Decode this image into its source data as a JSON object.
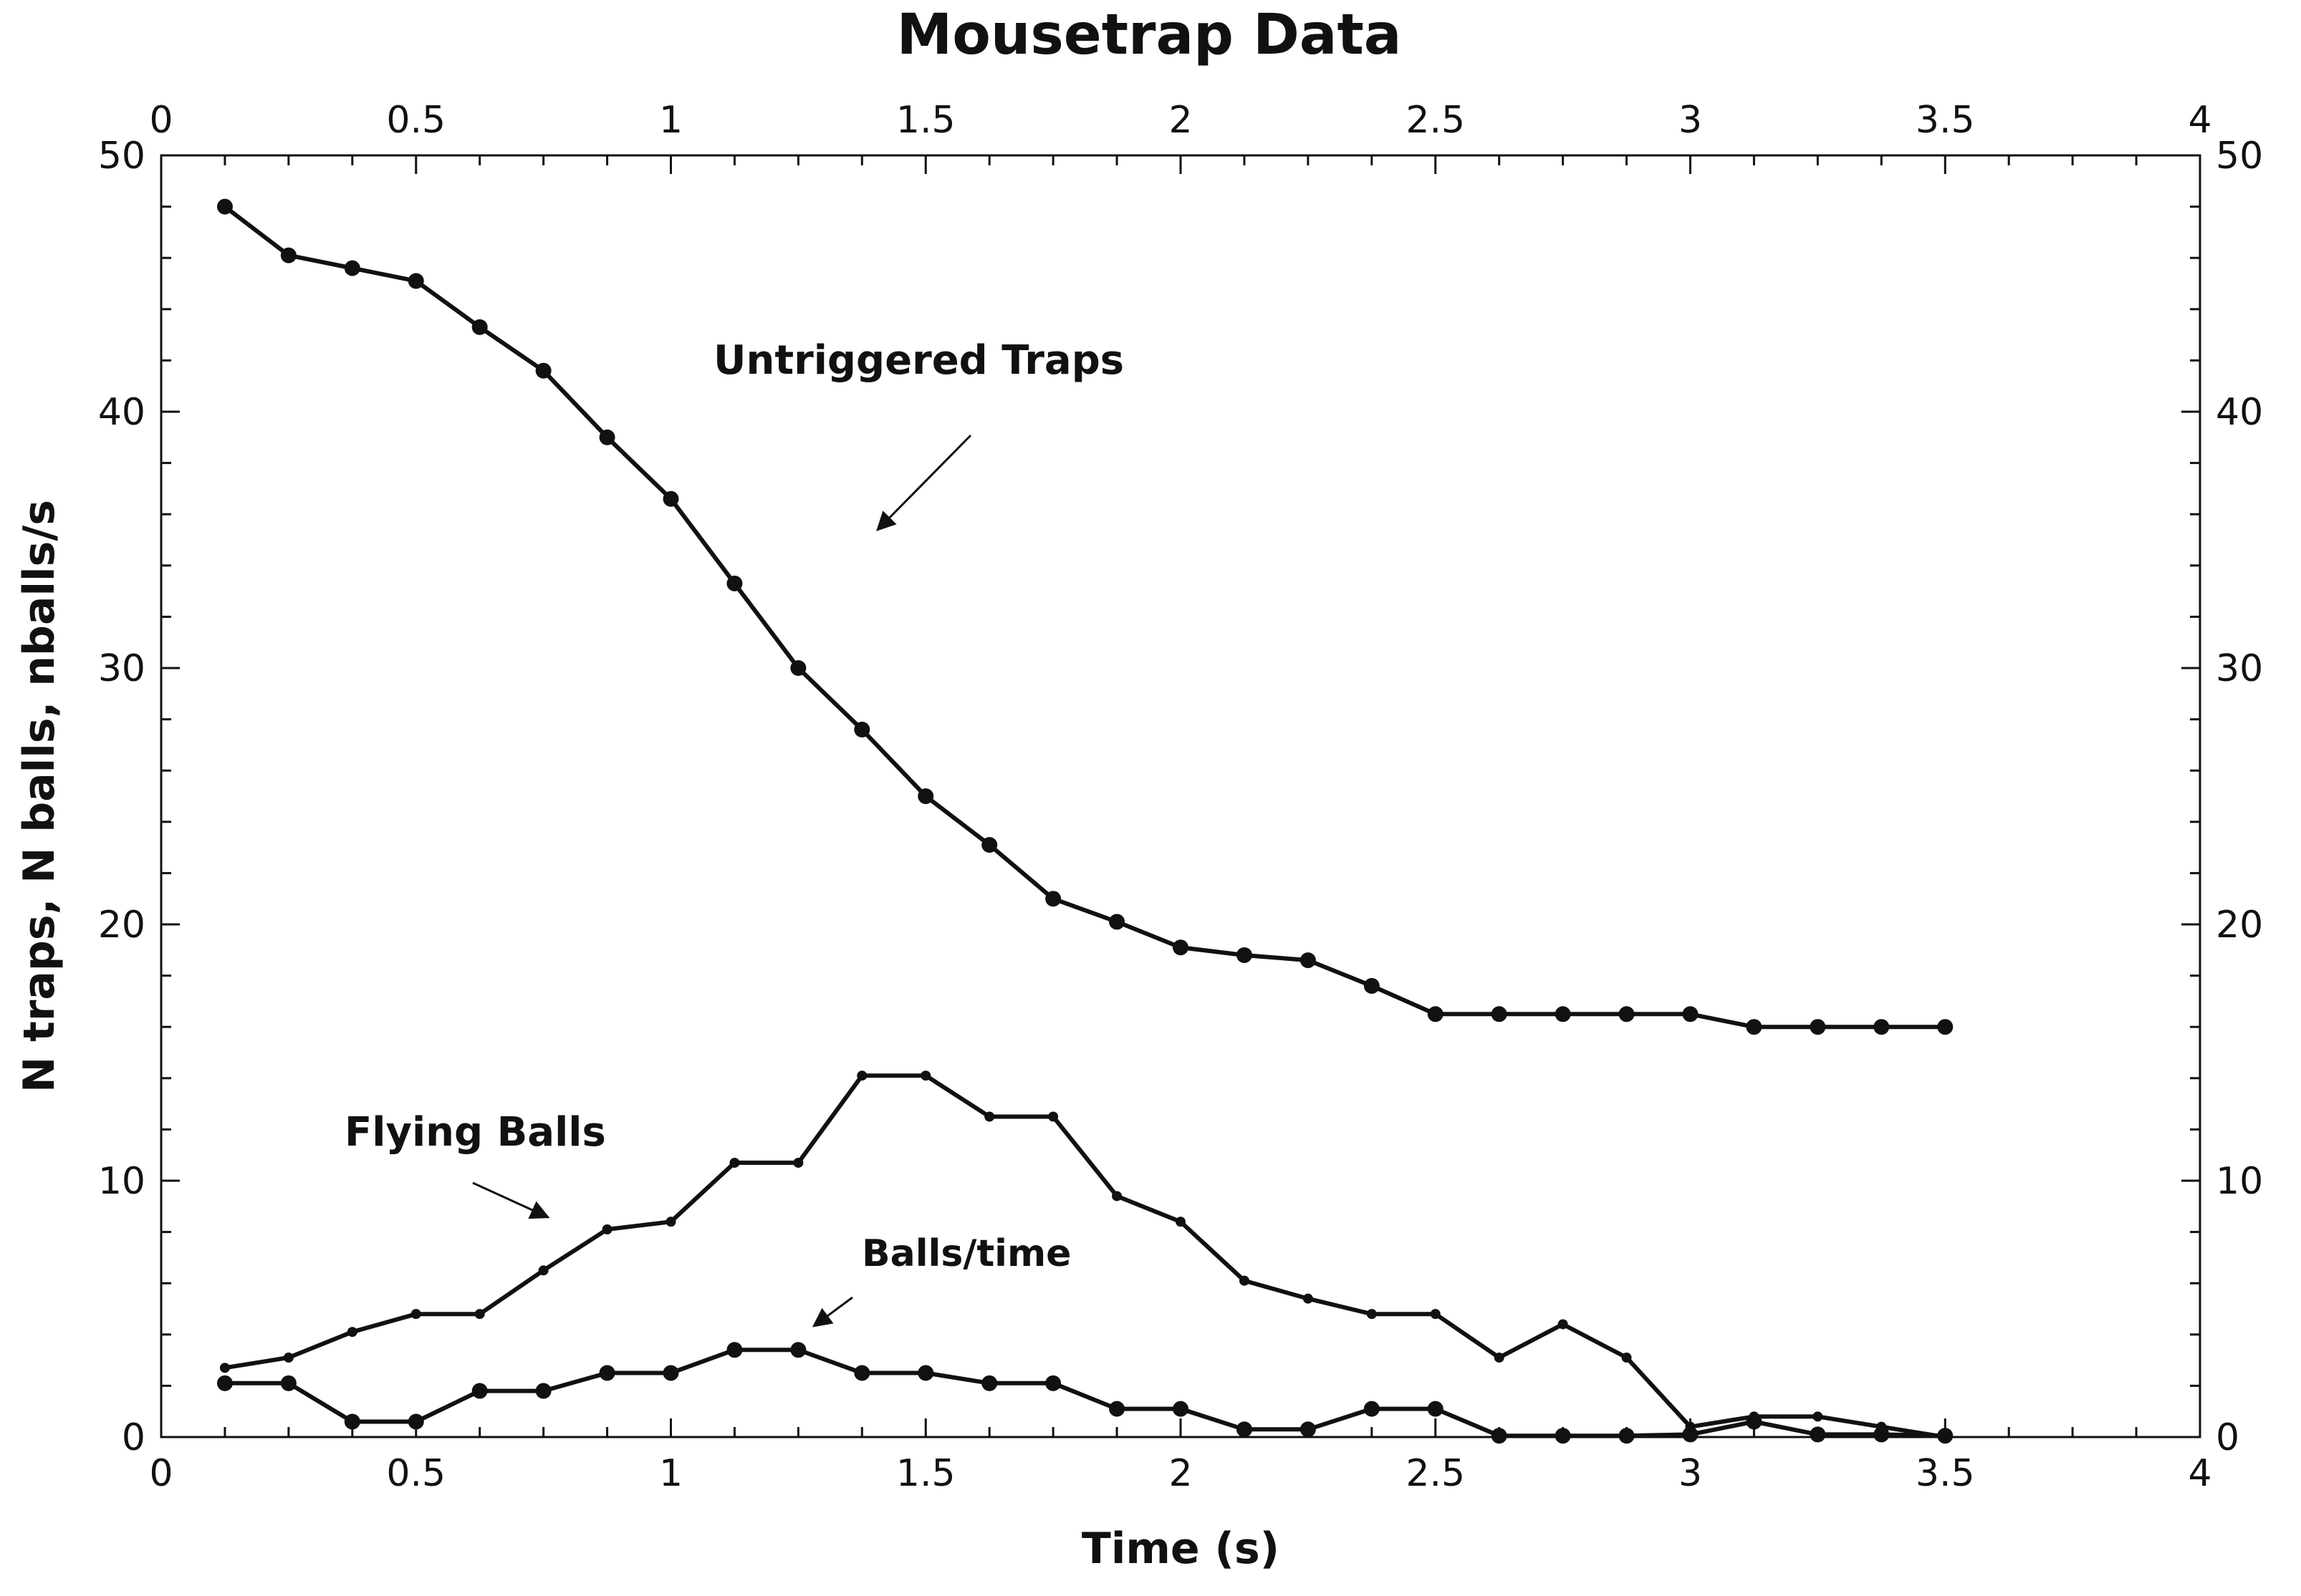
{
  "chart_data": {
    "type": "line",
    "title": "Mousetrap Data",
    "xlabel": "Time (s)",
    "ylabel": "N traps, N balls, nballs/s",
    "xlim": [
      0,
      4
    ],
    "ylim": [
      0,
      50
    ],
    "x_ticks": [
      "0",
      "0.5",
      "1",
      "1.5",
      "2",
      "2.5",
      "3",
      "3.5",
      "4"
    ],
    "y_ticks": [
      "0",
      "10",
      "20",
      "30",
      "40",
      "50"
    ],
    "grid": false,
    "series": [
      {
        "name": "Untriggered Traps",
        "marker": "large-dot",
        "x": [
          0.125,
          0.25,
          0.375,
          0.5,
          0.625,
          0.75,
          0.875,
          1.0,
          1.125,
          1.25,
          1.375,
          1.5,
          1.625,
          1.75,
          1.875,
          2.0,
          2.125,
          2.25,
          2.375,
          2.5,
          2.625,
          2.75,
          2.875,
          3.0,
          3.125,
          3.25,
          3.375,
          3.5
        ],
        "y": [
          48,
          46.1,
          45.6,
          45.1,
          43.3,
          41.6,
          39,
          36.6,
          33.3,
          30,
          27.6,
          25,
          23.1,
          21,
          20.1,
          19.1,
          18.8,
          18.6,
          17.6,
          16.5,
          16.5,
          16.5,
          16.5,
          16.5,
          16,
          16,
          16,
          16
        ]
      },
      {
        "name": "Flying Balls",
        "marker": "small-dot",
        "x": [
          0.125,
          0.25,
          0.375,
          0.5,
          0.625,
          0.75,
          0.875,
          1.0,
          1.125,
          1.25,
          1.375,
          1.5,
          1.625,
          1.75,
          1.875,
          2.0,
          2.125,
          2.25,
          2.375,
          2.5,
          2.625,
          2.75,
          2.875,
          3.0,
          3.125,
          3.25,
          3.375,
          3.5
        ],
        "y": [
          2.7,
          3.1,
          4.1,
          4.8,
          4.8,
          6.5,
          8.1,
          8.4,
          10.7,
          10.7,
          14.1,
          14.1,
          12.5,
          12.5,
          9.4,
          8.4,
          6.1,
          5.4,
          4.8,
          4.8,
          3.1,
          4.4,
          3.1,
          0.4,
          0.8,
          0.8,
          0.4,
          0
        ]
      },
      {
        "name": "Balls/time",
        "marker": "large-dot",
        "x": [
          0.125,
          0.25,
          0.375,
          0.5,
          0.625,
          0.75,
          0.875,
          1.0,
          1.125,
          1.25,
          1.375,
          1.5,
          1.625,
          1.75,
          1.875,
          2.0,
          2.125,
          2.25,
          2.375,
          2.5,
          2.625,
          2.75,
          2.875,
          3.0,
          3.125,
          3.25,
          3.375,
          3.5
        ],
        "y": [
          2.1,
          2.1,
          0.6,
          0.6,
          1.8,
          1.8,
          2.5,
          2.5,
          3.4,
          3.4,
          2.5,
          2.5,
          2.1,
          2.1,
          1.1,
          1.1,
          0.3,
          0.3,
          1.1,
          1.1,
          0.05,
          0.05,
          0.05,
          0.1,
          0.6,
          0.1,
          0.1,
          0.05
        ]
      }
    ],
    "annotations": [
      {
        "text": "Untriggered Traps",
        "target_series": "Untriggered Traps"
      },
      {
        "text": "Flying Balls",
        "target_series": "Flying Balls"
      },
      {
        "text": "Balls/time",
        "target_series": "Balls/time"
      }
    ]
  }
}
